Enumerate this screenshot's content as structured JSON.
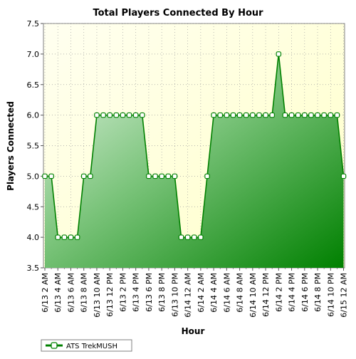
{
  "chart_data": {
    "type": "area",
    "title": "Total Players Connected By Hour",
    "xlabel": "Hour",
    "ylabel": "Players Connected",
    "ylim": [
      3.5,
      7.5
    ],
    "yticks": [
      "3.5",
      "4.0",
      "4.5",
      "5.0",
      "5.5",
      "6.0",
      "6.5",
      "7.0",
      "7.5"
    ],
    "xtick_labels": [
      "6/13 2 AM",
      "6/13 4 AM",
      "6/13 6 AM",
      "6/13 8 AM",
      "6/13 10 AM",
      "6/13 12 PM",
      "6/13 2 PM",
      "6/13 4 PM",
      "6/13 6 PM",
      "6/13 8 PM",
      "6/13 10 PM",
      "6/14 12 AM",
      "6/14 2 AM",
      "6/14 4 AM",
      "6/14 6 AM",
      "6/14 8 AM",
      "6/14 10 AM",
      "6/14 12 PM",
      "6/14 2 PM",
      "6/14 4 PM",
      "6/14 6 PM",
      "6/14 8 PM",
      "6/14 10 PM",
      "6/15 12 AM"
    ],
    "grid": true,
    "legend_position": "bottom-left",
    "series": [
      {
        "name": "ATS TrekMUSH",
        "color": "#008000",
        "values": [
          5,
          5,
          4,
          4,
          4,
          4,
          5,
          5,
          6,
          6,
          6,
          6,
          6,
          6,
          6,
          6,
          5,
          5,
          5,
          5,
          5,
          4,
          4,
          4,
          4,
          5,
          6,
          6,
          6,
          6,
          6,
          6,
          6,
          6,
          6,
          6,
          7,
          6,
          6,
          6,
          6,
          6,
          6,
          6,
          6,
          6,
          5
        ]
      }
    ]
  }
}
